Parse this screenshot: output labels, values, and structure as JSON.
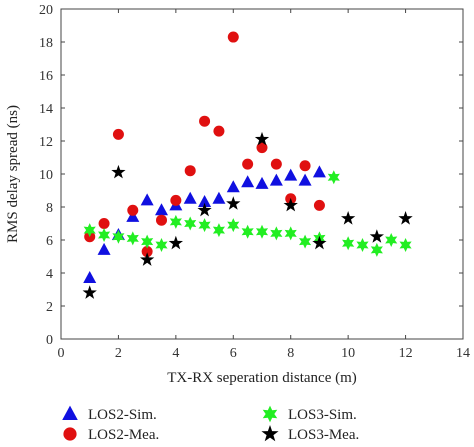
{
  "chart_data": {
    "type": "scatter",
    "title": "",
    "xlabel": "TX-RX seperation distance (m)",
    "ylabel": "RMS delay spread (ns)",
    "xlim": [
      0,
      14
    ],
    "ylim": [
      0,
      20
    ],
    "xticks": [
      "0",
      "2",
      "4",
      "6",
      "8",
      "10",
      "12",
      "14"
    ],
    "yticks": [
      "0",
      "2",
      "4",
      "6",
      "8",
      "10",
      "12",
      "14",
      "16",
      "18",
      "20"
    ],
    "grid": false,
    "legend_position": "bottom",
    "series": [
      {
        "name": "LOS2-Sim.",
        "marker": "triangle",
        "color": "#1010e0",
        "points": [
          [
            1,
            3.7
          ],
          [
            1.5,
            5.4
          ],
          [
            2,
            6.3
          ],
          [
            2.5,
            7.4
          ],
          [
            3,
            8.4
          ],
          [
            3.5,
            7.8
          ],
          [
            4,
            8.1
          ],
          [
            4.5,
            8.5
          ],
          [
            5,
            8.3
          ],
          [
            5.5,
            8.5
          ],
          [
            6,
            9.2
          ],
          [
            6.5,
            9.5
          ],
          [
            7,
            9.4
          ],
          [
            7.5,
            9.6
          ],
          [
            8,
            9.9
          ],
          [
            8.5,
            9.6
          ],
          [
            9,
            10.1
          ]
        ]
      },
      {
        "name": "LOS2-Mea.",
        "marker": "circle",
        "color": "#e01010",
        "points": [
          [
            1,
            6.2
          ],
          [
            1.5,
            7.0
          ],
          [
            2,
            12.4
          ],
          [
            2.5,
            7.8
          ],
          [
            3,
            5.3
          ],
          [
            3.5,
            7.2
          ],
          [
            4,
            8.4
          ],
          [
            4.5,
            10.2
          ],
          [
            5,
            13.2
          ],
          [
            5.5,
            12.6
          ],
          [
            6,
            18.3
          ],
          [
            6.5,
            10.6
          ],
          [
            7,
            11.6
          ],
          [
            7.5,
            10.6
          ],
          [
            8,
            8.5
          ],
          [
            8.5,
            10.5
          ],
          [
            9,
            8.1
          ]
        ]
      },
      {
        "name": "LOS3-Sim.",
        "marker": "star6",
        "color": "#22ee22",
        "points": [
          [
            1,
            6.6
          ],
          [
            1.5,
            6.3
          ],
          [
            2,
            6.2
          ],
          [
            2.5,
            6.1
          ],
          [
            3,
            5.9
          ],
          [
            3.5,
            5.7
          ],
          [
            4,
            7.1
          ],
          [
            4.5,
            7.0
          ],
          [
            5,
            6.9
          ],
          [
            5.5,
            6.6
          ],
          [
            6,
            6.9
          ],
          [
            6.5,
            6.5
          ],
          [
            7,
            6.5
          ],
          [
            7.5,
            6.4
          ],
          [
            8,
            6.4
          ],
          [
            8.5,
            5.9
          ],
          [
            9,
            6.1
          ],
          [
            9.5,
            9.8
          ],
          [
            10,
            5.8
          ],
          [
            10.5,
            5.7
          ],
          [
            11,
            5.4
          ],
          [
            11.5,
            6.0
          ],
          [
            12,
            5.7
          ]
        ]
      },
      {
        "name": "LOS3-Mea.",
        "marker": "star5",
        "color": "#000000",
        "points": [
          [
            1,
            2.8
          ],
          [
            2,
            10.1
          ],
          [
            3,
            4.8
          ],
          [
            4,
            5.8
          ],
          [
            5,
            7.8
          ],
          [
            6,
            8.2
          ],
          [
            7,
            12.1
          ],
          [
            8,
            8.1
          ],
          [
            9,
            5.8
          ],
          [
            10,
            7.3
          ],
          [
            11,
            6.2
          ],
          [
            12,
            7.3
          ]
        ]
      }
    ]
  }
}
